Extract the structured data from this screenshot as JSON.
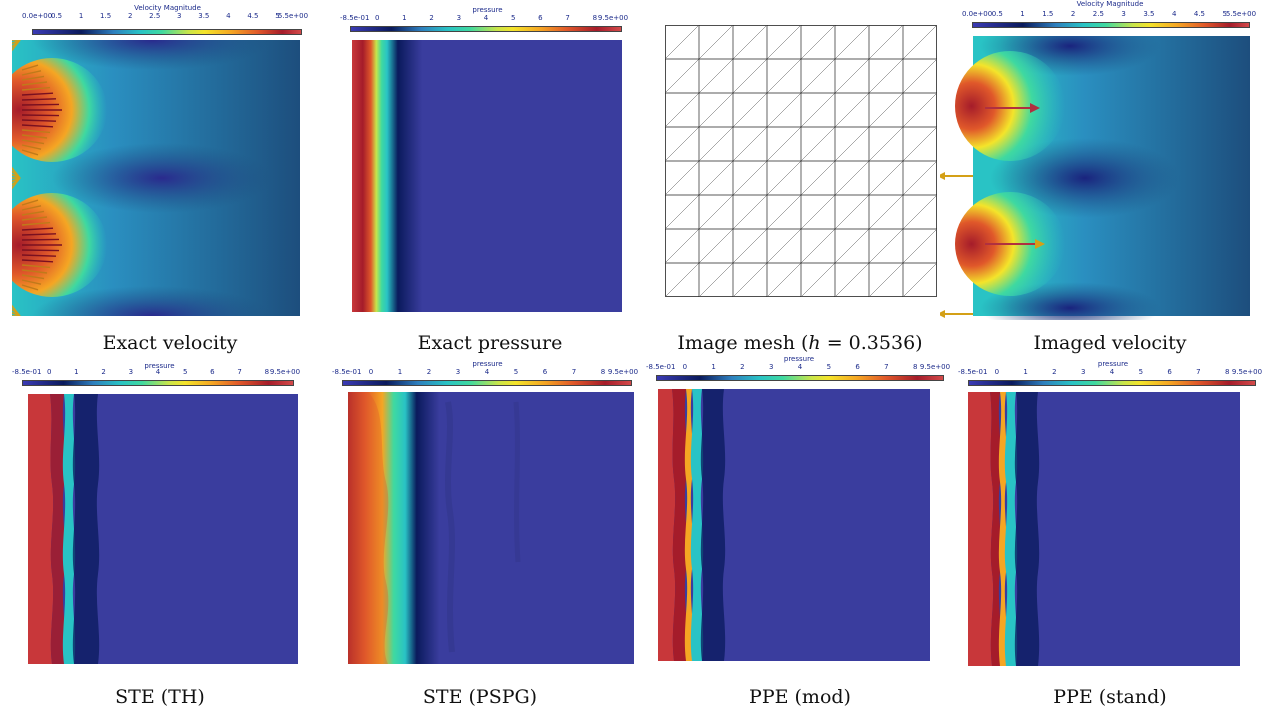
{
  "captions": {
    "exact_velocity": "Exact velocity",
    "exact_pressure": "Exact pressure",
    "image_mesh_prefix": "Image mesh (",
    "image_mesh_var": "h",
    "image_mesh_suffix": " = 0.3536)",
    "imaged_velocity": "Imaged velocity",
    "ste_th": "STE (TH)",
    "ste_pspg": "STE (PSPG)",
    "ppe_mod": "PPE (mod)",
    "ppe_stand": "PPE (stand)"
  },
  "colorbars": {
    "velocity": {
      "title": "Velocity Magnitude",
      "ticks": [
        "0.0e+00",
        "0.5",
        "1",
        "1.5",
        "2",
        "2.5",
        "3",
        "3.5",
        "4",
        "4.5",
        "5",
        "5.5e+00"
      ]
    },
    "pressure": {
      "title": "pressure",
      "ticks": [
        "-8.5e-01",
        "0",
        "1",
        "2",
        "3",
        "4",
        "5",
        "6",
        "7",
        "8",
        "9.5e+00"
      ]
    }
  },
  "colors": {
    "dark_red": "#a51c2a",
    "red": "#c8373a",
    "cyan": "#29c3c5",
    "navy": "#0a1a5c",
    "blue_bg": "#3a3d9e",
    "teal_bg": "#1d4e7d",
    "arrow_gold": "#d4a017",
    "arrow_red": "#b03040"
  },
  "mesh": {
    "divisions": 8
  }
}
